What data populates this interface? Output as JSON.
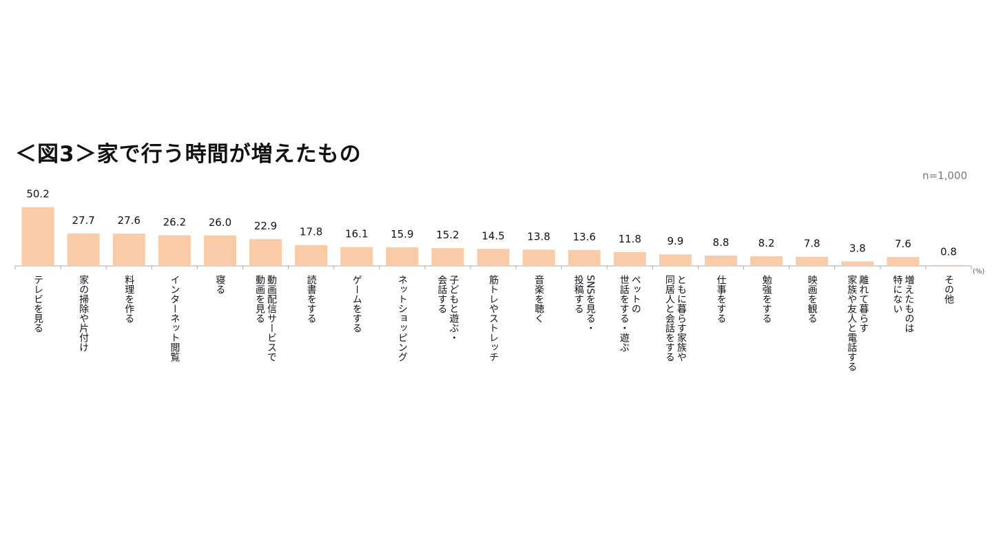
{
  "title": "＜図3＞家で行う時間が増えたもの",
  "sample_size": "n=1,000",
  "chart_data": {
    "type": "bar",
    "title": "＜図3＞家で行う時間が増えたもの",
    "unit": "(%)",
    "ylim": [
      0,
      60
    ],
    "bar_color": "#F9CBA7",
    "categories": [
      [
        "テレビを見る"
      ],
      [
        "家の掃除や片付け"
      ],
      [
        "料理を作る"
      ],
      [
        "インターネット閲覧"
      ],
      [
        "寝る"
      ],
      [
        "動画配信サービスで",
        "動画を見る"
      ],
      [
        "読書をする"
      ],
      [
        "ゲームをする"
      ],
      [
        "ネットショッピング"
      ],
      [
        "子どもと遊ぶ・",
        "会話する"
      ],
      [
        "筋トレやストレッチ"
      ],
      [
        "音楽を聴く"
      ],
      [
        "SNSを見る・",
        "投稿する"
      ],
      [
        "ペットの",
        "世話をする・遊ぶ"
      ],
      [
        "ともに暮らす家族や",
        "同居人と会話をする"
      ],
      [
        "仕事をする"
      ],
      [
        "勉強をする"
      ],
      [
        "映画を観る"
      ],
      [
        "離れて暮らす",
        "家族や友人と電話する"
      ],
      [
        "増えたものは",
        "特にない"
      ],
      [
        "その他"
      ]
    ],
    "values": [
      50.2,
      27.7,
      27.6,
      26.2,
      26.0,
      22.9,
      17.8,
      16.1,
      15.9,
      15.2,
      14.5,
      13.8,
      13.6,
      11.8,
      9.9,
      8.8,
      8.2,
      7.8,
      3.8,
      7.6,
      0.8
    ],
    "value_labels": [
      "50.2",
      "27.7",
      "27.6",
      "26.2",
      "26.0",
      "22.9",
      "17.8",
      "16.1",
      "15.9",
      "15.2",
      "14.5",
      "13.8",
      "13.6",
      "11.8",
      "9.9",
      "8.8",
      "8.2",
      "7.8",
      "3.8",
      "7.6",
      "0.8"
    ]
  }
}
